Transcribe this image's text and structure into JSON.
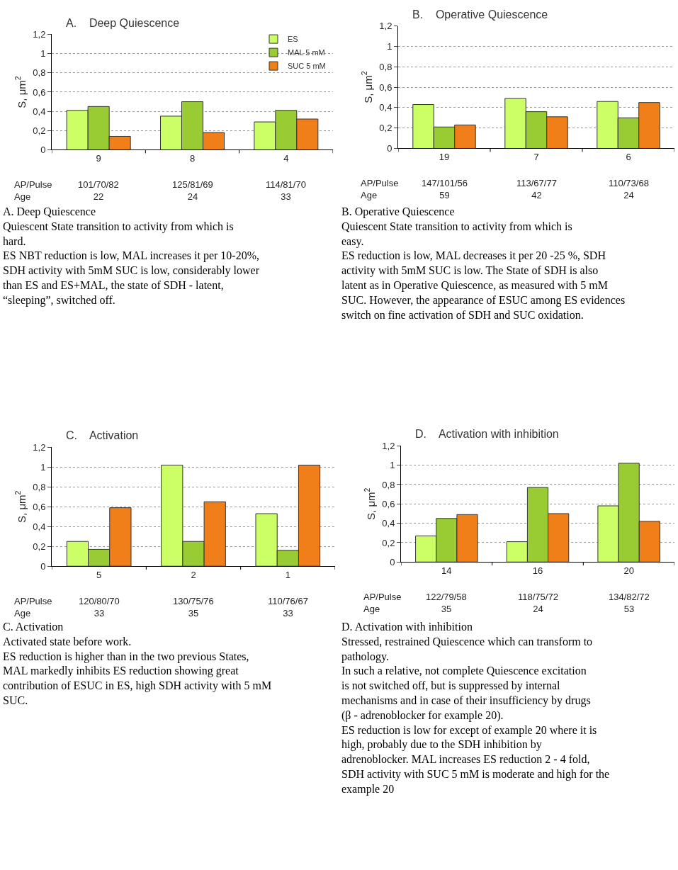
{
  "chart_data": [
    {
      "type": "bar",
      "title": "A.    Deep Quiescence",
      "ylabel": "S, μm$^{2}$",
      "categories": [
        "9",
        "8",
        "4"
      ],
      "series": [
        {
          "name": "ES",
          "color": "#ccff66",
          "values": [
            0.41,
            0.35,
            0.29
          ]
        },
        {
          "name": "MAL 5 mM",
          "color": "#99cc33",
          "values": [
            0.45,
            0.5,
            0.41
          ]
        },
        {
          "name": "SUC 5 mM",
          "color": "#f07f1a",
          "values": [
            0.14,
            0.18,
            0.32
          ]
        }
      ],
      "ylim": [
        0,
        1.2
      ],
      "yticks": [
        0,
        {
          "value": 0.2,
          "label": "0,2"
        },
        {
          "value": 0.4,
          "label": "0,4"
        },
        {
          "value": 0.6,
          "label": "0,6"
        },
        {
          "value": 0.8,
          "label": "0,8"
        },
        1,
        {
          "value": 1.2,
          "label": "1,2"
        }
      ],
      "grid": "y",
      "legend": "top right",
      "annotations": [
        "AP/Pulse\nAge",
        "101/70/82\n22",
        "125/81/69\n24",
        "114/81/70\n33",
        "A. Deep Quiescence\nQuiescent State transition to activity from which is hard.\nES NBT reduction is low, MAL increases it per 10-20%, SDH activity with 5mM SUC is low, considerably lower than ES and ES+MAL, the state of SDH - latent, “sleeping”, switched off."
      ]
    },
    {
      "type": "bar",
      "title": "B.    Operative Quiescence",
      "ylabel": "S, μm$^{2}$",
      "categories": [
        "19",
        "7",
        "6"
      ],
      "series": [
        {
          "color": "#ccff66",
          "values": [
            0.43,
            0.49,
            0.46
          ]
        },
        {
          "color": "#99cc33",
          "values": [
            0.21,
            0.36,
            0.3
          ]
        },
        {
          "color": "#f07f1a",
          "values": [
            0.23,
            0.31,
            0.45
          ]
        }
      ],
      "ylim": [
        0,
        1.2
      ],
      "yticks": [
        0,
        {
          "value": 0.2,
          "label": "0,2"
        },
        {
          "value": 0.4,
          "label": "0,4"
        },
        {
          "value": 0.6,
          "label": "0,6"
        },
        {
          "value": 0.8,
          "label": "0,8"
        },
        1,
        {
          "value": 1.2,
          "label": "1,2"
        }
      ],
      "grid": "y",
      "annotations": [
        "AP/Pulse\nAge",
        "147/101/56\n59",
        "113/67/77\n42",
        "110/73/68\n24",
        "B. Operative Quiescence\nQuiescent State transition to activity from which is easy.\nES reduction is low, MAL decreases it per 20 -25 %, SDH activity with 5mM SUC is low. The State of SDH is also latent as in Operative Quiescence, as measured with 5 mM SUC. However, the appearance of ESUC among ES evidences switch on fine activation of SDH and SUC oxidation."
      ]
    },
    {
      "type": "bar",
      "title": "C.    Activation",
      "ylabel": "S, μm$^{2}$",
      "categories": [
        "5",
        "2",
        "1"
      ],
      "series": [
        {
          "color": "#ccff66",
          "values": [
            0.25,
            1.02,
            0.53
          ]
        },
        {
          "color": "#99cc33",
          "values": [
            0.17,
            0.25,
            0.16
          ]
        },
        {
          "color": "#f07f1a",
          "values": [
            0.59,
            0.65,
            1.02
          ]
        }
      ],
      "ylim": [
        0,
        1.2
      ],
      "yticks": [
        0,
        {
          "value": 0.2,
          "label": "0,2"
        },
        {
          "value": 0.4,
          "label": "0,4"
        },
        {
          "value": 0.6,
          "label": "0,6"
        },
        {
          "value": 0.8,
          "label": "0,8"
        },
        1,
        {
          "value": 1.2,
          "label": "1,2"
        }
      ],
      "grid": "y",
      "annotations": [
        "AP/Pulse\nAge",
        "120/80/70\n33",
        "130/75/76\n35",
        "110/76/67\n33",
        "C. Activation\nActivated state before work.\nES reduction is higher than in the two previous States, MAL markedly inhibits ES reduction showing great contribution of ESUC in ES, high SDH activity with 5 mM SUC."
      ]
    },
    {
      "type": "bar",
      "title": "D.    Activation with inhibition",
      "ylabel": "S, μm$^{2}$",
      "categories": [
        "14",
        "16",
        "20"
      ],
      "series": [
        {
          "color": "#ccff66",
          "values": [
            0.27,
            0.21,
            0.58
          ]
        },
        {
          "color": "#99cc33",
          "values": [
            0.45,
            0.77,
            1.02
          ]
        },
        {
          "color": "#f07f1a",
          "values": [
            0.49,
            0.5,
            0.42
          ]
        }
      ],
      "ylim": [
        0,
        1.2
      ],
      "yticks": [
        0,
        {
          "value": 0.2,
          "label": "0,2"
        },
        {
          "value": 0.4,
          "label": "0,4"
        },
        {
          "value": 0.6,
          "label": "0,6"
        },
        {
          "value": 0.8,
          "label": "0,8"
        },
        1,
        {
          "value": 1.2,
          "label": "1,2"
        }
      ],
      "grid": "y",
      "annotations": [
        "AP/Pulse\nAge",
        "122/79/58\n35",
        "118/75/72\n24",
        "134/82/72\n53",
        "D. Activation with inhibition\nStressed, restrained Quiescence which can transform to pathology.\nIn such a relative, not complete Quiescence excitation is not switched off, but is suppressed by internal mechanisms and in case of their insufficiency by drugs (β - adrenoblocker for example 20).\nES reduction is low for except of example 20 where it is high, probably due to the SDH inhibition by adrenoblocker. MAL increases ES reduction 2 - 4 fold, SDH activity with SUC 5 mM is moderate and high for the example 20"
      ]
    }
  ]
}
